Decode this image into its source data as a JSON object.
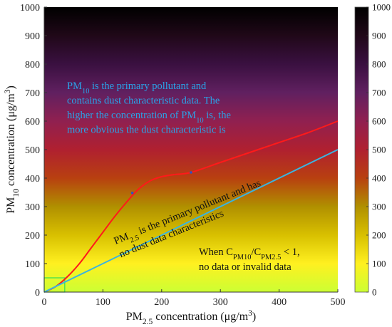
{
  "chart_data": {
    "type": "line",
    "xlabel": {
      "base": "PM",
      "sub": "2.5",
      "rest": " concentration (μg/m",
      "sup": "3",
      "end": ")"
    },
    "ylabel": {
      "base": "PM",
      "sub": "10",
      "rest": " concentration (μg/m",
      "sup": "3",
      "end": ")"
    },
    "xlim": [
      0,
      500
    ],
    "ylim": [
      0,
      1000
    ],
    "x_ticks": [
      "0",
      "100",
      "200",
      "300",
      "400",
      "500"
    ],
    "y_ticks": [
      "0",
      "100",
      "200",
      "300",
      "400",
      "500",
      "600",
      "700",
      "800",
      "900",
      "1000"
    ],
    "colorbar": {
      "range": [
        0,
        1000
      ],
      "ticks": [
        "0",
        "100",
        "200",
        "300",
        "400",
        "500",
        "600",
        "700",
        "800",
        "900",
        "1000"
      ],
      "colors": [
        "#ccff33",
        "#fff020",
        "#d8c000",
        "#b09000",
        "#b84010",
        "#b02030",
        "#902050",
        "#602060",
        "#3a1040",
        "#200818",
        "#000000"
      ]
    },
    "series": [
      {
        "color": "#ff1a1a",
        "x": [
          0,
          20,
          40,
          60,
          80,
          100,
          120,
          140,
          160,
          180,
          200,
          220,
          250,
          300,
          350,
          400,
          450,
          500
        ],
        "y": [
          0,
          20,
          55,
          100,
          155,
          210,
          265,
          315,
          360,
          390,
          405,
          412,
          420,
          455,
          490,
          525,
          560,
          600
        ]
      },
      {
        "color": "#3ab4e0",
        "x": [
          0,
          500
        ],
        "y": [
          0,
          500
        ]
      }
    ],
    "points": [
      {
        "x": 150,
        "y": 348
      },
      {
        "x": 250,
        "y": 420
      }
    ],
    "region": {
      "x": [
        0,
        35
      ],
      "y": [
        0,
        50
      ],
      "color": "#33dd55"
    },
    "annotations": {
      "pm10_note": [
        [
          {
            "t": "PM"
          },
          {
            "t": "10",
            "sub": true
          },
          {
            "t": " is the primary pollutant and"
          }
        ],
        [
          {
            "t": "contains dust characteristic data. The"
          }
        ],
        [
          {
            "t": "higher the concentration of PM"
          },
          {
            "t": "10",
            "sub": true
          },
          {
            "t": " is, the"
          }
        ],
        [
          {
            "t": "more obvious the dust characteristic is"
          }
        ]
      ],
      "pm25_note": [
        [
          {
            "t": "PM"
          },
          {
            "t": "2.5",
            "sub": true
          },
          {
            "t": " is the primary pollutant and has"
          }
        ],
        [
          {
            "t": "no dust data characteristics"
          }
        ]
      ],
      "ratio_note": [
        [
          {
            "t": "When C"
          },
          {
            "t": "PM10",
            "sub": true
          },
          {
            "t": "/C"
          },
          {
            "t": "PM2.5",
            "sub": true
          },
          {
            "t": " < 1,"
          }
        ],
        [
          {
            "t": "no data or invalid data"
          }
        ]
      ]
    }
  }
}
